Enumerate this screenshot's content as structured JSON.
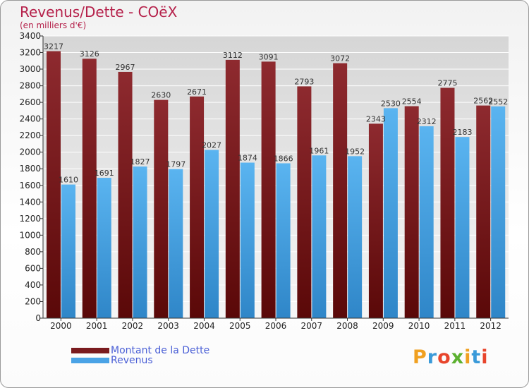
{
  "title": "Revenus/Dette - COëX",
  "subtitle": "(en milliers d'€)",
  "colors": {
    "dette": "#7a1b1f",
    "revenus": "#4aa3e6",
    "axis": "#333333",
    "grid": "#ffffff"
  },
  "chart_data": {
    "type": "bar",
    "categories": [
      "2000",
      "2001",
      "2002",
      "2003",
      "2004",
      "2005",
      "2006",
      "2007",
      "2008",
      "2009",
      "2010",
      "2011",
      "2012"
    ],
    "series": [
      {
        "name": "Montant de la Dette",
        "values": [
          3217,
          3126,
          2967,
          2630,
          2671,
          3112,
          3091,
          2793,
          3072,
          2343,
          2554,
          2775,
          2562
        ]
      },
      {
        "name": "Revenus",
        "values": [
          1610,
          1691,
          1827,
          1797,
          2027,
          1874,
          1866,
          1961,
          1952,
          2530,
          2312,
          2183,
          2552
        ]
      }
    ],
    "ylim": [
      0,
      3400
    ],
    "yticks": [
      0,
      200,
      400,
      600,
      800,
      1000,
      1200,
      1400,
      1600,
      1800,
      2000,
      2200,
      2400,
      2600,
      2800,
      3000,
      3200,
      3400
    ],
    "grid": true,
    "legend": "bottom-left"
  },
  "legend": [
    {
      "label": "Montant de la Dette"
    },
    {
      "label": "Revenus"
    }
  ],
  "logo": {
    "letters": [
      "P",
      "r",
      "o",
      "x",
      "i",
      "t",
      "i"
    ]
  }
}
